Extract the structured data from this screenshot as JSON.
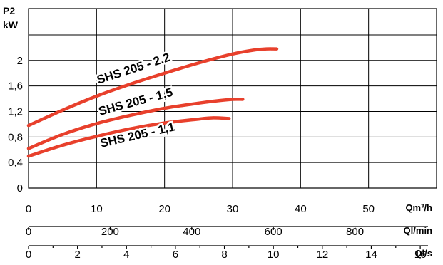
{
  "chart_data": {
    "type": "line",
    "ylabel_lines": [
      "P2",
      "kW"
    ],
    "y_ticks": [
      0,
      0.4,
      0.8,
      1.2,
      1.6,
      2
    ],
    "y_tick_labels": [
      "0",
      "0,4",
      "0,8",
      "1,2",
      "1,6",
      "2"
    ],
    "ylim": [
      0,
      2.5
    ],
    "x_axes": [
      {
        "unit_label": "Qm³/h",
        "range": [
          0,
          60
        ],
        "ticks": [
          0,
          10,
          20,
          30,
          40,
          50
        ],
        "tick_labels": [
          "0",
          "10",
          "20",
          "30",
          "40",
          "50"
        ]
      },
      {
        "unit_label": "Ql/min",
        "range": [
          0,
          1000
        ],
        "ticks": [
          0,
          200,
          400,
          600,
          800
        ],
        "tick_labels": [
          "0",
          "200",
          "400",
          "600",
          "800"
        ]
      },
      {
        "unit_label": "Ql/s",
        "range": [
          0,
          16.667
        ],
        "ticks": [
          0,
          2,
          4,
          6,
          8,
          10,
          12,
          14,
          16
        ],
        "tick_labels": [
          "0",
          "2",
          "4",
          "6",
          "8",
          "10",
          "12",
          "14",
          "16"
        ]
      }
    ],
    "grid": true,
    "series_color": "#e8402c",
    "series": [
      {
        "name": "SHS 205 - 2.2",
        "x": [
          0,
          5,
          10,
          15,
          20,
          25,
          30,
          33,
          35,
          36.5
        ],
        "y": [
          0.98,
          1.22,
          1.44,
          1.63,
          1.8,
          1.96,
          2.1,
          2.16,
          2.18,
          2.18
        ]
      },
      {
        "name": "SHS 205 - 1,5",
        "x": [
          0,
          5,
          10,
          15,
          20,
          25,
          28,
          30,
          31.5
        ],
        "y": [
          0.62,
          0.84,
          1.01,
          1.14,
          1.25,
          1.33,
          1.37,
          1.39,
          1.39
        ]
      },
      {
        "name": "SHS 205 - 1,1",
        "x": [
          0,
          5,
          10,
          15,
          20,
          25,
          27,
          29.5
        ],
        "y": [
          0.5,
          0.67,
          0.81,
          0.93,
          1.02,
          1.08,
          1.1,
          1.09
        ]
      }
    ]
  }
}
